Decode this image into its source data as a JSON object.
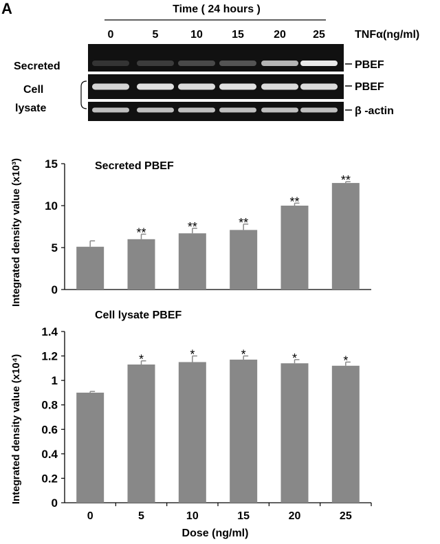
{
  "panel_label": "A",
  "blot": {
    "time_label": "Time ( 24 hours )",
    "treatment_label": "TNFα(ng/ml)",
    "doses": [
      "0",
      "5",
      "10",
      "15",
      "20",
      "25"
    ],
    "row_labels": {
      "secreted": "Secreted",
      "cell": "Cell",
      "lysate": "lysate"
    },
    "band_labels": {
      "secreted": "PBEF",
      "lysate_pbef": "PBEF",
      "actin": "β -actin"
    },
    "secreted_band_intensity": [
      0.1,
      0.14,
      0.2,
      0.25,
      0.7,
      0.95
    ],
    "lysate_pbef_band_intensity": [
      0.85,
      0.9,
      0.88,
      0.9,
      0.88,
      0.88
    ],
    "actin_band_intensity": [
      0.75,
      0.75,
      0.75,
      0.75,
      0.75,
      0.75
    ]
  },
  "chart_data": [
    {
      "type": "bar",
      "title": "Secreted PBEF",
      "ylabel": "Integrated density value (x10³)",
      "xlabel": "",
      "categories": [
        "0",
        "5",
        "10",
        "15",
        "20",
        "25"
      ],
      "values": [
        5.1,
        6.0,
        6.7,
        7.1,
        10.0,
        12.7
      ],
      "errors": [
        0.7,
        0.6,
        0.6,
        0.7,
        0.3,
        0.15
      ],
      "significance": [
        "",
        "**",
        "**",
        "**",
        "**",
        "**"
      ],
      "ylim": [
        0,
        15
      ],
      "yticks": [
        0,
        5,
        10,
        15
      ],
      "ytick_labels": [
        "0",
        "5",
        "10",
        "15"
      ],
      "bar_color": "#888888",
      "grid": false
    },
    {
      "type": "bar",
      "title": "Cell lysate PBEF",
      "ylabel": "Integrated density value (x10⁴)",
      "xlabel": "Dose (ng/ml)",
      "categories": [
        "0",
        "5",
        "10",
        "15",
        "20",
        "25"
      ],
      "values": [
        0.9,
        1.13,
        1.15,
        1.17,
        1.14,
        1.12
      ],
      "errors": [
        0.01,
        0.03,
        0.05,
        0.03,
        0.03,
        0.03
      ],
      "significance": [
        "",
        "*",
        "*",
        "*",
        "*",
        "*"
      ],
      "ylim": [
        0,
        1.4
      ],
      "yticks": [
        0,
        0.2,
        0.4,
        0.6,
        0.8,
        1.0,
        1.2,
        1.4
      ],
      "ytick_labels": [
        "0",
        "0.2",
        "0.4",
        "0.6",
        "0.8",
        "1",
        "1.2",
        "1.4"
      ],
      "bar_color": "#888888",
      "grid": false
    }
  ]
}
